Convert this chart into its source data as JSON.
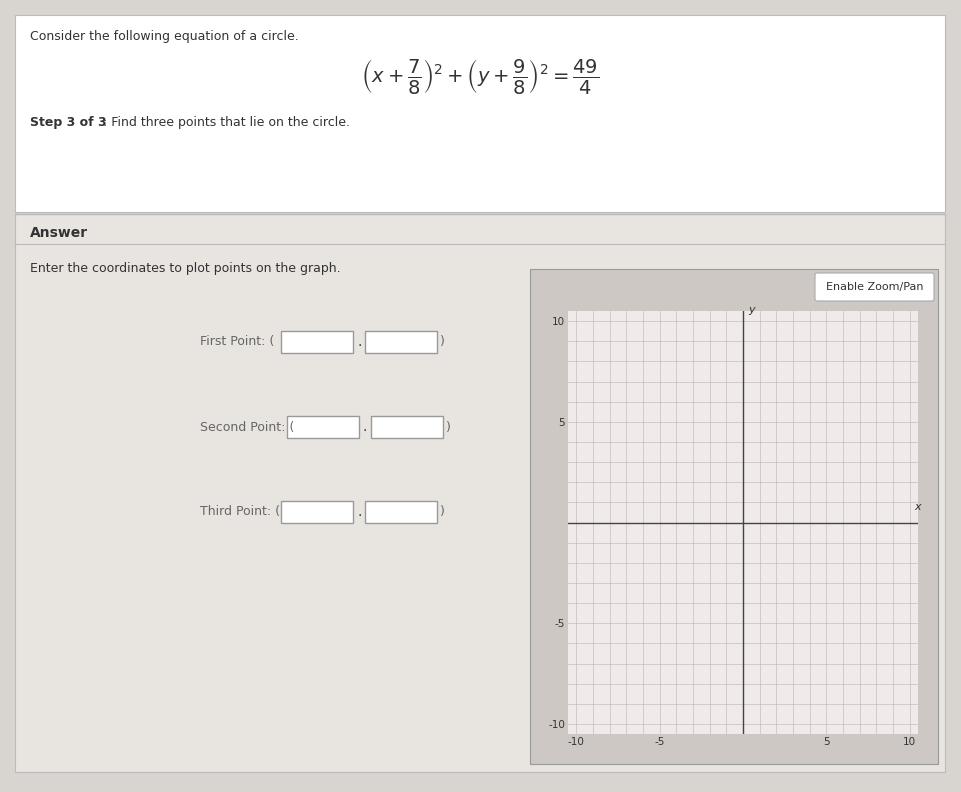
{
  "page_bg": "#d8d4d0",
  "white": "#ffffff",
  "panel_bg": "#ece8e4",
  "title_text": "Consider the following equation of a circle.",
  "step_bold": "Step 3 of 3",
  "step_colon": ":",
  "step_desc": " Find three points that lie on the circle.",
  "answer_label": "Answer",
  "enter_text": "Enter the coordinates to plot points on the graph.",
  "enable_zoom_text": "Enable Zoom/Pan",
  "first_point_label": "First Point: (",
  "second_point_label": "Second Point: (",
  "third_point_label": "Third Point: (",
  "axis_limit": 10,
  "grid_color": "#c0b0b0",
  "axis_color": "#444444",
  "text_color": "#333333",
  "light_text": "#666666",
  "input_box_border": "#999999",
  "graph_panel_bg": "#cec8c4",
  "graph_bg": "#f0eaea",
  "sep_color": "#bbbbbb",
  "answer_bg": "#e8e4e0"
}
